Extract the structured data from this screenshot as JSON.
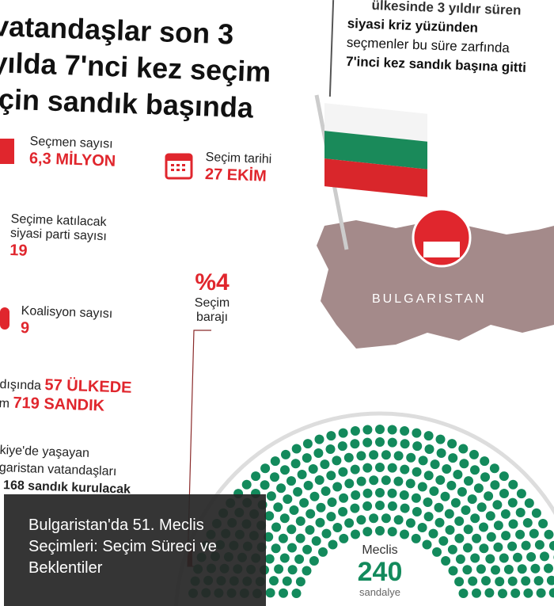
{
  "headline": {
    "lines": [
      "vatandaşlar son 3",
      "yılda 7'nci kez seçim",
      "için sandık başında"
    ]
  },
  "stats": {
    "voters": {
      "label": "Seçmen sayısı",
      "value": "6,3 MİLYON",
      "icon": "ballot-box-icon"
    },
    "date": {
      "label": "Seçim tarihi",
      "value": "27 EKİM",
      "icon": "calendar-icon"
    },
    "parties": {
      "label1": "Seçime katılacak",
      "label2": "siyasi parti sayısı",
      "value": "19"
    },
    "coalitions": {
      "label": "Koalisyon sayısı",
      "value": "9",
      "icon": "people-icon"
    },
    "threshold": {
      "value": "%4",
      "label1": "Seçim",
      "label2": "barajı"
    },
    "abroad": {
      "line1_text": "dışında",
      "line1_value": "57 ÜLKEDE",
      "line2_text": "m",
      "line2_value": "719 SANDIK"
    },
    "turkey": {
      "line1": "kiye'de yaşayan",
      "line2": "garistan vatandaşları",
      "line3": "168 sandık kurulacak"
    }
  },
  "right_text": {
    "line0": "ülkesinde 3 yıldır süren",
    "line1": "siyasi kriz yüzünden",
    "line2": "seçmenler bu süre zarfında",
    "line3": "7'inci kez sandık başına gitti"
  },
  "map": {
    "label": "BULGARISTAN",
    "color": "#a48a8a",
    "flag_colors": [
      "#ffffff",
      "#1a8a5a",
      "#d9262b"
    ]
  },
  "parliament": {
    "label": "Meclis",
    "seats": "240",
    "unit": "sandalye",
    "color": "#138a5c"
  },
  "caption": {
    "text": "Bulgaristan'da 51. Meclis Seçimleri: Seçim Süreci ve Beklentiler"
  },
  "colors": {
    "accent": "#e0262d",
    "caption_bg": "#262626"
  }
}
